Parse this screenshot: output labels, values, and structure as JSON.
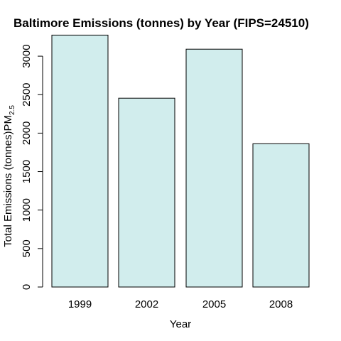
{
  "chart_data": {
    "type": "bar",
    "title": "Baltimore Emissions (tonnes) by Year (FIPS=24510)",
    "xlabel": "Year",
    "ylabel_main": "Total Emissions (tonnes)PM",
    "ylabel_sub": "2.5",
    "categories": [
      "1999",
      "2002",
      "2005",
      "2008"
    ],
    "values": [
      3274,
      2454,
      3091,
      1862
    ],
    "ylim": [
      0,
      3250
    ],
    "yticks": [
      0,
      500,
      1000,
      1500,
      2000,
      2500,
      3000
    ],
    "bar_color": "#d1eded",
    "grid": false,
    "legend": "none"
  }
}
